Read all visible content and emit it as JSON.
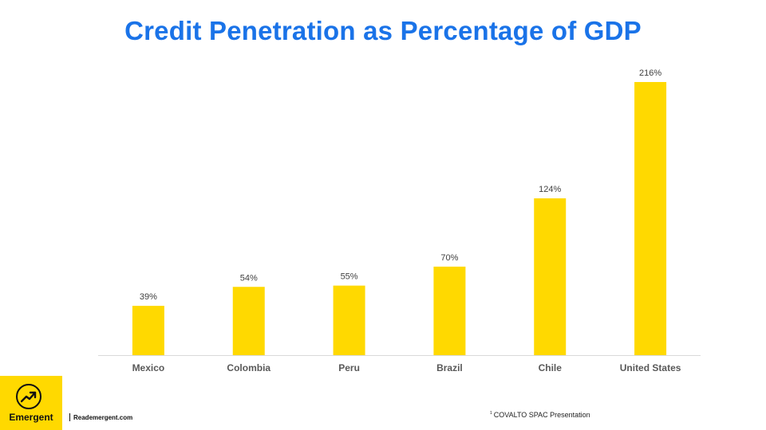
{
  "header": {
    "title": "Credit Penetration as Percentage of GDP"
  },
  "chart_data": {
    "type": "bar",
    "title": "Credit Penetration as Percentage of GDP",
    "categories": [
      "Mexico",
      "Colombia",
      "Peru",
      "Brazil",
      "Chile",
      "United States"
    ],
    "values": [
      39,
      54,
      55,
      70,
      124,
      216
    ],
    "data_labels": [
      "39%",
      "54%",
      "55%",
      "70%",
      "124%",
      "216%"
    ],
    "unit": "%",
    "xlabel": "",
    "ylabel": "",
    "ylim": [
      0,
      220
    ],
    "grid": false,
    "legend": "none",
    "bar_color": "#ffd900"
  },
  "footer": {
    "brand": "Emergent",
    "brand_icon": "trending-up-icon",
    "website": "Reademergent.com",
    "source_marker": "1",
    "source": "COVALTO SPAC Presentation"
  },
  "colors": {
    "title": "#1a73e8",
    "bar": "#ffd900",
    "logo_bg": "#ffd900"
  }
}
